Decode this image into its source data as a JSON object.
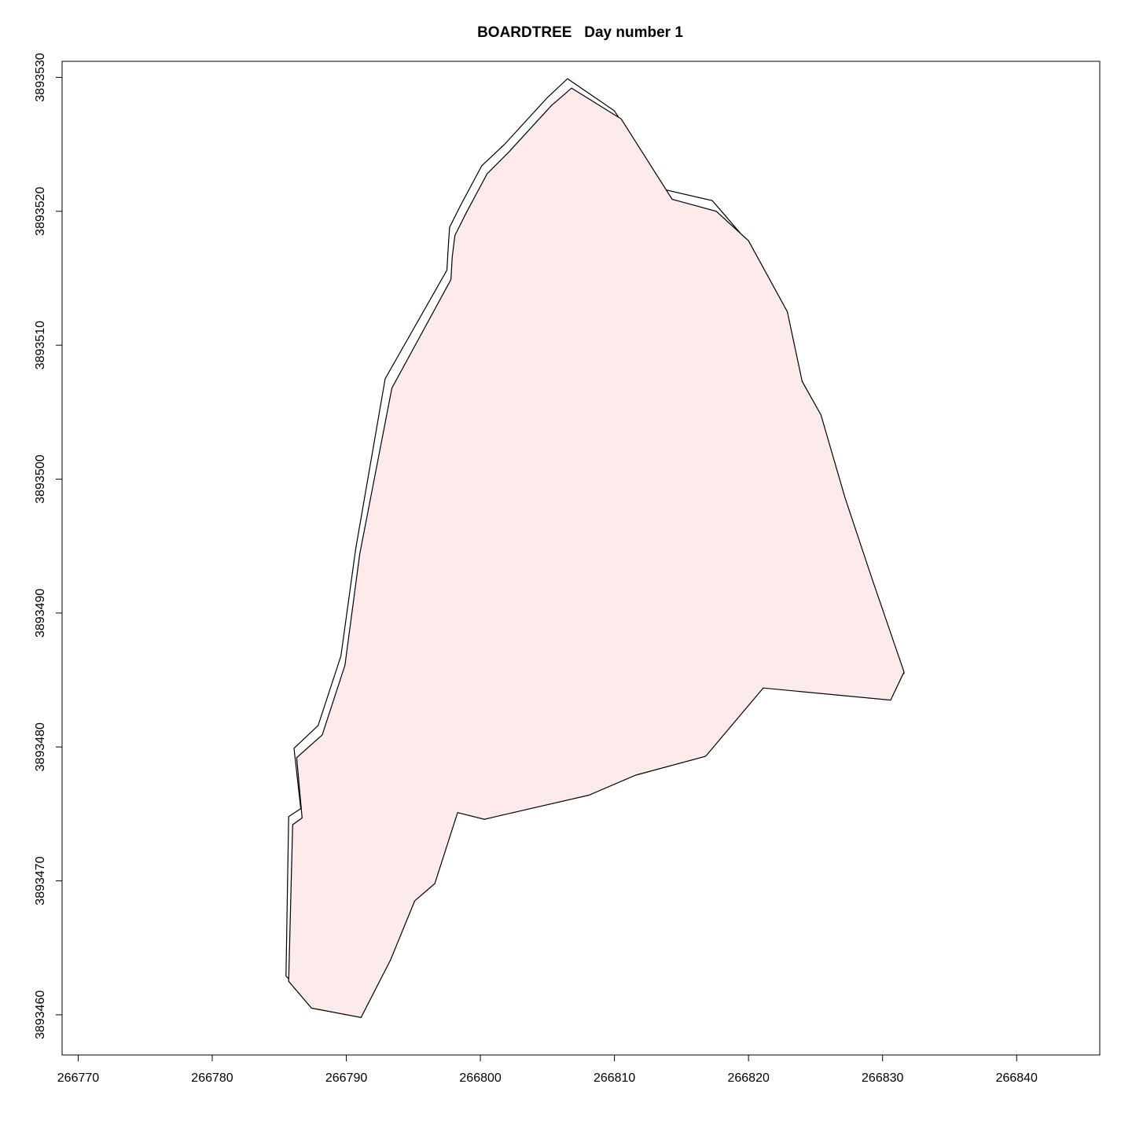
{
  "chart_data": {
    "type": "line",
    "title": "BOARDTREE   Day number 1",
    "xlabel": "",
    "ylabel": "",
    "xlim": [
      266768.8,
      266846.2
    ],
    "ylim": [
      3893457.0,
      3893531.2
    ],
    "x_ticks": [
      266770,
      266780,
      266790,
      266800,
      266810,
      266820,
      266830,
      266840
    ],
    "y_ticks": [
      3893460,
      3893470,
      3893480,
      3893490,
      3893500,
      3893510,
      3893520,
      3893530
    ],
    "x_tick_labels": [
      "266770",
      "266780",
      "266790",
      "266800",
      "266810",
      "266820",
      "266830",
      "266840"
    ],
    "y_tick_labels": [
      "3893460",
      "3893470",
      "3893480",
      "3893490",
      "3893500",
      "3893510",
      "3893520",
      "3893530"
    ],
    "grid": false,
    "legend": "none",
    "fill_color": "#fdeaea",
    "line_color": "#000000",
    "series": [
      {
        "x": [
          266806.5,
          266810.0,
          266813.8,
          266817.3,
          266819.7,
          266822.7,
          266823.9,
          266825.2,
          266827.1,
          266829.1,
          266831.3,
          266831.6,
          266830.2,
          266820.8,
          266816.4,
          266811.3,
          266807.6,
          266801.6,
          266799.9,
          266797.9,
          266796.3,
          266794.8,
          266793.1,
          266791.0,
          266787.1,
          266785.5,
          266785.7,
          266786.6,
          266786.1,
          266787.9,
          266789.6,
          266790.7,
          266792.9,
          266797.5,
          266797.6,
          266797.7,
          266798.5,
          266800.1,
          266801.8,
          266805.0,
          266806.5
        ],
        "y": [
          3893529.9,
          3893527.5,
          3893521.6,
          3893520.8,
          3893518.0,
          3893512.8,
          3893507.5,
          3893505.0,
          3893498.7,
          3893492.5,
          3893486.1,
          3893485.5,
          3893484.2,
          3893485.0,
          3893480.0,
          3893478.6,
          3893476.9,
          3893475.6,
          3893475.2,
          3893475.9,
          3893470.5,
          3893469.3,
          3893464.8,
          3893460.5,
          3893461.2,
          3893462.9,
          3893474.8,
          3893475.4,
          3893479.9,
          3893481.6,
          3893486.8,
          3893494.8,
          3893507.5,
          3893515.6,
          3893517.3,
          3893518.8,
          3893520.4,
          3893523.4,
          3893525.0,
          3893528.5,
          3893529.9
        ]
      },
      {
        "x": [
          266806.8,
          266810.5,
          266814.3,
          266817.6,
          266820.0,
          266822.9,
          266824.0,
          266825.4,
          266827.2,
          266829.2,
          266831.6,
          266830.6,
          266821.1,
          266816.8,
          266811.6,
          266808.1,
          266802.0,
          266800.3,
          266798.3,
          266796.6,
          266795.1,
          266793.3,
          266791.1,
          266787.4,
          266785.7,
          266786.0,
          266786.7,
          266786.3,
          266788.2,
          266789.9,
          266791.0,
          266793.4,
          266797.8,
          266797.9,
          266798.1,
          266798.9,
          266800.5,
          266802.1,
          266805.3,
          266806.8
        ],
        "y": [
          3893529.2,
          3893526.9,
          3893520.9,
          3893520.0,
          3893517.8,
          3893512.5,
          3893507.3,
          3893504.8,
          3893498.6,
          3893492.6,
          3893485.6,
          3893483.5,
          3893484.4,
          3893479.3,
          3893477.9,
          3893476.4,
          3893475.0,
          3893474.6,
          3893475.1,
          3893469.8,
          3893468.5,
          3893464.1,
          3893459.8,
          3893460.5,
          3893462.5,
          3893474.2,
          3893474.7,
          3893479.2,
          3893480.9,
          3893486.1,
          3893494.4,
          3893506.8,
          3893514.9,
          3893516.6,
          3893518.2,
          3893519.8,
          3893522.8,
          3893524.4,
          3893527.9,
          3893529.2
        ]
      }
    ]
  }
}
